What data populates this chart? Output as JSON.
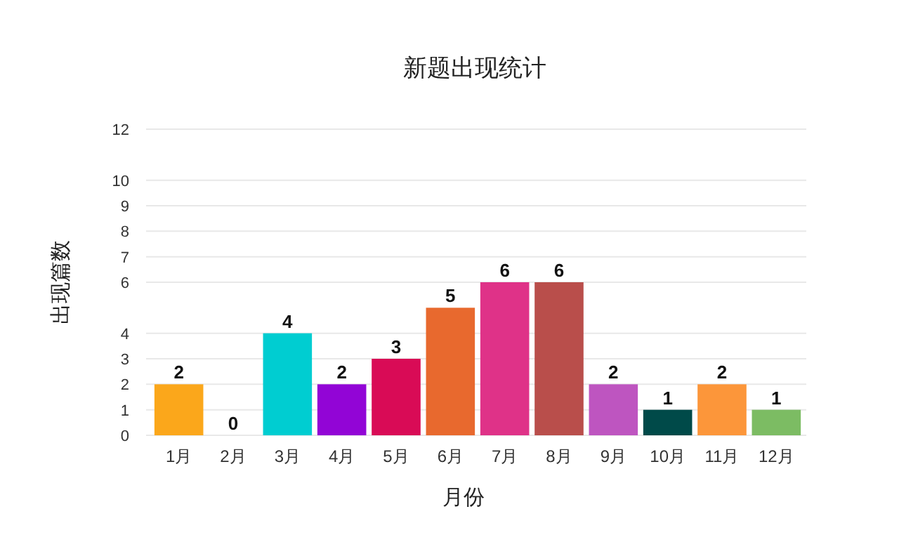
{
  "chart_data": {
    "type": "bar",
    "title": "新题出现统计",
    "xlabel": "月份",
    "ylabel": "出现篇数",
    "categories": [
      "1月",
      "2月",
      "3月",
      "4月",
      "5月",
      "6月",
      "7月",
      "8月",
      "9月",
      "10月",
      "11月",
      "12月"
    ],
    "values": [
      2,
      0,
      4,
      2,
      3,
      5,
      6,
      6,
      2,
      1,
      2,
      1
    ],
    "colors": [
      "#fba71b",
      "#9e9e9e",
      "#00cdd1",
      "#9205d6",
      "#d90b56",
      "#e8692e",
      "#df3288",
      "#b94e4b",
      "#be55c0",
      "#004a49",
      "#fc963a",
      "#7cbc63"
    ],
    "ylim": [
      0,
      12
    ],
    "yticks": [
      0,
      1,
      2,
      3,
      4,
      6,
      7,
      8,
      9,
      10,
      12
    ],
    "grid": "y",
    "data_labels": true
  }
}
